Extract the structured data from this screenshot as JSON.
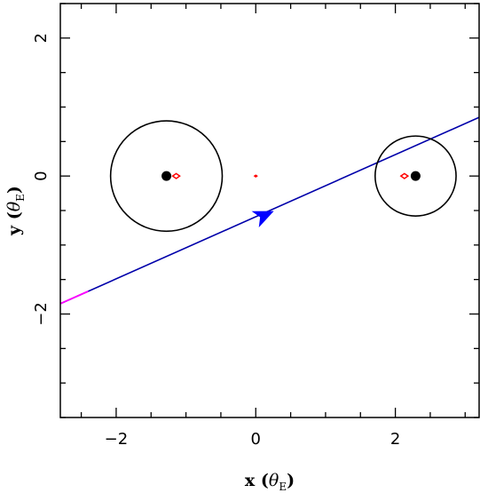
{
  "chart_data": {
    "type": "scatter",
    "title": "",
    "xlabel": {
      "var": "x",
      "symbol": "θ",
      "sub": "E"
    },
    "ylabel": {
      "var": "y",
      "symbol": "θ",
      "sub": "E"
    },
    "xlim": [
      -2.8,
      3.2
    ],
    "ylim": [
      -3.5,
      2.5
    ],
    "x_ticks": [
      -2,
      0,
      2
    ],
    "x_tick_labels": [
      "−2",
      "0",
      "2"
    ],
    "y_ticks": [
      -2,
      0,
      2
    ],
    "y_tick_labels": [
      "−2",
      "0",
      "2"
    ],
    "x_minor_step": 0.5,
    "y_minor_step": 0.5,
    "grid": false,
    "lenses": [
      {
        "x": -1.28,
        "y": 0.0
      },
      {
        "x": 2.29,
        "y": 0.0
      }
    ],
    "critical_curves": [
      {
        "cx": -1.28,
        "cy": 0.0,
        "radius": 0.8
      },
      {
        "cx": 2.29,
        "cy": 0.0,
        "radius": 0.58
      }
    ],
    "caustics": [
      {
        "x": -1.14,
        "y": 0.0
      },
      {
        "x": 0.0,
        "y": 0.0
      },
      {
        "x": 2.13,
        "y": 0.0
      }
    ],
    "trajectory": {
      "start": [
        -2.8,
        -1.85
      ],
      "end": [
        3.2,
        0.85
      ],
      "magenta_until_x": -2.4,
      "arrow_at": [
        0.12,
        -0.57
      ]
    },
    "colors": {
      "trajectory": "#0000aa",
      "trajectory_start": "#ff00ff",
      "arrow": "#0000ff",
      "caustic": "#ff0000",
      "curve": "#000000",
      "lens": "#000000"
    }
  }
}
